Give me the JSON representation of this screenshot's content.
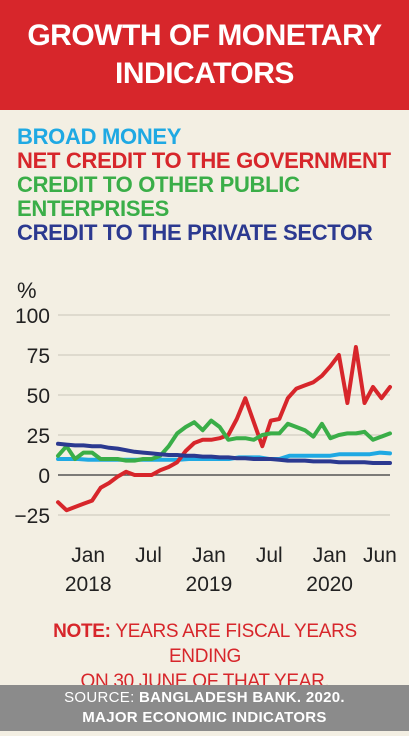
{
  "header": {
    "title_line1": "GROWTH OF MONETARY",
    "title_line2": "INDICATORS"
  },
  "chart_data": {
    "type": "line",
    "title": "GROWTH OF MONETARY INDICATORS",
    "ylabel": "%",
    "ylim": [
      -30,
      100
    ],
    "yticks": [
      100,
      75,
      50,
      25,
      0,
      -25
    ],
    "xticks": [
      {
        "month": "Jan",
        "year": "2018",
        "x": 0
      },
      {
        "month": "Jul",
        "year": "",
        "x": 6
      },
      {
        "month": "Jan",
        "year": "2019",
        "x": 12
      },
      {
        "month": "Jul",
        "year": "",
        "x": 18
      },
      {
        "month": "Jan",
        "year": "2020",
        "x": 24
      },
      {
        "month": "Jun",
        "year": "",
        "x": 29
      }
    ],
    "x_start": -3,
    "x_end": 30,
    "series": [
      {
        "name": "BROAD MONEY",
        "color": "#1fa9e3",
        "values": [
          10,
          10,
          10,
          9.5,
          9.5,
          9.5,
          9.5,
          9.5,
          9.5,
          9.5,
          9.5,
          9.5,
          9.5,
          10,
          10,
          10,
          10,
          10,
          11,
          11,
          11,
          10,
          10,
          12,
          12,
          12,
          12,
          12,
          13,
          13,
          13,
          13,
          14,
          13.5
        ]
      },
      {
        "name": "NET CREDIT TO THE GOVERNMENT",
        "color": "#d7262b",
        "values": [
          -17,
          -22,
          -20,
          -18,
          -16,
          -8,
          -5,
          -1,
          2,
          0,
          0,
          0,
          3,
          5,
          8,
          15,
          20,
          22,
          22,
          23,
          25,
          35,
          48,
          33,
          18,
          34,
          35,
          48,
          54,
          56,
          58,
          62,
          68,
          75,
          45,
          80,
          45,
          55,
          48,
          55
        ]
      },
      {
        "name": "CREDIT TO OTHER PUBLIC ENTERPRISES",
        "color": "#3aae48",
        "values": [
          12,
          18,
          10,
          14,
          14,
          10,
          10,
          10,
          9,
          9,
          10,
          10,
          12,
          18,
          26,
          30,
          33,
          28,
          34,
          30,
          22,
          23,
          23,
          22,
          25,
          26,
          26,
          32,
          30,
          28,
          24,
          32,
          23,
          25,
          26,
          26,
          27,
          22,
          24,
          26
        ]
      },
      {
        "name": "CREDIT TO THE PRIVATE SECTOR",
        "color": "#2b3990",
        "values": [
          19.5,
          19,
          18.5,
          18.5,
          18,
          18,
          17,
          16.5,
          15.5,
          14.5,
          14,
          13.5,
          13,
          12.5,
          12.5,
          12,
          12,
          11.5,
          11.5,
          11,
          11,
          10.5,
          10.5,
          10,
          10,
          10,
          9.5,
          9,
          9,
          9,
          8.5,
          8.5,
          8.5,
          8,
          8,
          8,
          8,
          7.5,
          7.5,
          7.5
        ]
      }
    ],
    "grid": true
  },
  "note": {
    "label": "NOTE:",
    "text_line1": " YEARS ARE FISCAL YEARS ENDING",
    "text_line2": "ON 30 JUNE OF THAT YEAR."
  },
  "source": {
    "label": "SOURCE: ",
    "text_line1": "BANGLADESH BANK. 2020.",
    "text_line2": "MAJOR ECONOMIC INDICATORS"
  }
}
